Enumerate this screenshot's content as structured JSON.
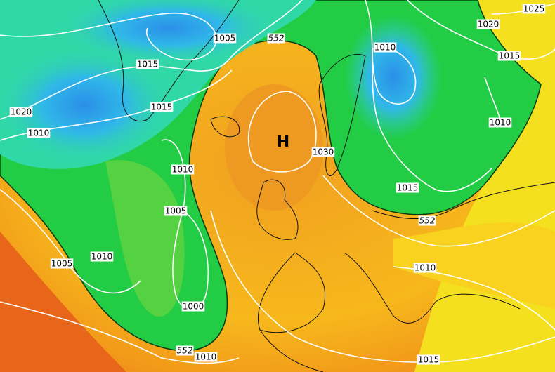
{
  "labels": [
    "1025",
    "1020",
    "1015",
    "1010",
    "1010",
    "1005",
    "552",
    "1015",
    "1015",
    "1020",
    "1010",
    "1010",
    "1005",
    "1030",
    "H",
    "1015",
    "552",
    "1010",
    "1010",
    "1005",
    "1000",
    "552",
    "1010",
    "1015"
  ]
}
